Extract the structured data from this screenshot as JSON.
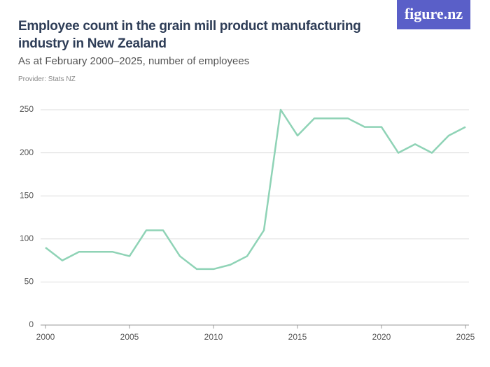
{
  "logo": "figure.nz",
  "chart_data": {
    "type": "line",
    "title": "Employee count in the grain mill product manufacturing industry in New Zealand",
    "subtitle": "As at February 2000–2025, number of employees",
    "provider": "Provider: Stats NZ",
    "x": [
      2000,
      2001,
      2002,
      2003,
      2004,
      2005,
      2006,
      2007,
      2008,
      2009,
      2010,
      2011,
      2012,
      2013,
      2014,
      2015,
      2016,
      2017,
      2018,
      2019,
      2020,
      2021,
      2022,
      2023,
      2024,
      2025
    ],
    "values": [
      90,
      75,
      85,
      85,
      85,
      80,
      110,
      110,
      80,
      65,
      65,
      70,
      80,
      110,
      250,
      220,
      240,
      240,
      240,
      230,
      230,
      200,
      210,
      200,
      220,
      230
    ],
    "color": "#8fd3b6",
    "xlim": [
      2000,
      2025
    ],
    "xticks": [
      2000,
      2005,
      2010,
      2015,
      2020,
      2025
    ],
    "ylim": [
      0,
      250
    ],
    "yticks": [
      0,
      50,
      100,
      150,
      200,
      250
    ],
    "grid": true
  }
}
